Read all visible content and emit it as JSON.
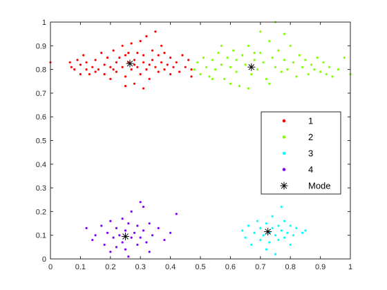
{
  "chart_data": {
    "type": "scatter",
    "title": "",
    "xlabel": "",
    "ylabel": "",
    "xlim": [
      0,
      1
    ],
    "ylim": [
      0,
      1
    ],
    "xticks": [
      "0",
      "0.1",
      "0.2",
      "0.3",
      "0.4",
      "0.5",
      "0.6",
      "0.7",
      "0.8",
      "0.9",
      "1"
    ],
    "yticks": [
      "0",
      "0.1",
      "0.2",
      "0.3",
      "0.4",
      "0.5",
      "0.6",
      "0.7",
      "0.8",
      "0.9",
      "1"
    ],
    "grid": false,
    "legend_position": "right",
    "series": [
      {
        "name": "1",
        "color": "#ff0000",
        "points": [
          [
            0.065,
            0.83
          ],
          [
            0.07,
            0.81
          ],
          [
            0.08,
            0.8
          ],
          [
            0.09,
            0.84
          ],
          [
            0.1,
            0.82
          ],
          [
            0.11,
            0.86
          ],
          [
            0.12,
            0.8
          ],
          [
            0.12,
            0.83
          ],
          [
            0.13,
            0.78
          ],
          [
            0.14,
            0.81
          ],
          [
            0.15,
            0.84
          ],
          [
            0.16,
            0.8
          ],
          [
            0.17,
            0.87
          ],
          [
            0.18,
            0.82
          ],
          [
            0.18,
            0.78
          ],
          [
            0.19,
            0.85
          ],
          [
            0.2,
            0.81
          ],
          [
            0.2,
            0.76
          ],
          [
            0.21,
            0.88
          ],
          [
            0.22,
            0.83
          ],
          [
            0.22,
            0.79
          ],
          [
            0.23,
            0.85
          ],
          [
            0.24,
            0.9
          ],
          [
            0.24,
            0.81
          ],
          [
            0.25,
            0.77
          ],
          [
            0.25,
            0.86
          ],
          [
            0.26,
            0.83
          ],
          [
            0.27,
            0.8
          ],
          [
            0.27,
            0.91
          ],
          [
            0.28,
            0.84
          ],
          [
            0.28,
            0.74
          ],
          [
            0.29,
            0.87
          ],
          [
            0.29,
            0.81
          ],
          [
            0.3,
            0.78
          ],
          [
            0.3,
            0.92
          ],
          [
            0.31,
            0.83
          ],
          [
            0.31,
            0.86
          ],
          [
            0.32,
            0.8
          ],
          [
            0.32,
            0.94
          ],
          [
            0.33,
            0.82
          ],
          [
            0.33,
            0.76
          ],
          [
            0.34,
            0.88
          ],
          [
            0.34,
            0.84
          ],
          [
            0.35,
            0.81
          ],
          [
            0.35,
            0.96
          ],
          [
            0.36,
            0.79
          ],
          [
            0.36,
            0.86
          ],
          [
            0.37,
            0.83
          ],
          [
            0.37,
            0.9
          ],
          [
            0.38,
            0.8
          ],
          [
            0.38,
            0.87
          ],
          [
            0.39,
            0.82
          ],
          [
            0.4,
            0.78
          ],
          [
            0.4,
            0.85
          ],
          [
            0.41,
            0.81
          ],
          [
            0.42,
            0.83
          ],
          [
            0.43,
            0.79
          ],
          [
            0.44,
            0.86
          ],
          [
            0.45,
            0.81
          ],
          [
            0.46,
            0.84
          ],
          [
            0.47,
            0.8
          ],
          [
            0.47,
            0.77
          ],
          [
            0.25,
            0.73
          ],
          [
            0.31,
            0.72
          ],
          [
            0.21,
            0.8
          ],
          [
            0.15,
            0.79
          ],
          [
            0.1,
            0.78
          ],
          [
            0.0,
            0.83
          ],
          [
            0.28,
            0.82
          ],
          [
            0.26,
            0.87
          ]
        ]
      },
      {
        "name": "2",
        "color": "#7fff00",
        "points": [
          [
            0.48,
            0.8
          ],
          [
            0.49,
            0.83
          ],
          [
            0.5,
            0.78
          ],
          [
            0.51,
            0.85
          ],
          [
            0.52,
            0.81
          ],
          [
            0.53,
            0.77
          ],
          [
            0.54,
            0.84
          ],
          [
            0.55,
            0.8
          ],
          [
            0.56,
            0.87
          ],
          [
            0.57,
            0.82
          ],
          [
            0.58,
            0.76
          ],
          [
            0.59,
            0.85
          ],
          [
            0.6,
            0.81
          ],
          [
            0.61,
            0.88
          ],
          [
            0.62,
            0.79
          ],
          [
            0.62,
            0.84
          ],
          [
            0.63,
            0.73
          ],
          [
            0.64,
            0.86
          ],
          [
            0.65,
            0.82
          ],
          [
            0.66,
            0.9
          ],
          [
            0.67,
            0.78
          ],
          [
            0.68,
            0.84
          ],
          [
            0.69,
            0.8
          ],
          [
            0.7,
            0.87
          ],
          [
            0.71,
            0.83
          ],
          [
            0.72,
            0.76
          ],
          [
            0.73,
            0.92
          ],
          [
            0.74,
            0.85
          ],
          [
            0.75,
            0.81
          ],
          [
            0.76,
            0.88
          ],
          [
            0.77,
            0.79
          ],
          [
            0.78,
            0.84
          ],
          [
            0.79,
            0.8
          ],
          [
            0.8,
            0.9
          ],
          [
            0.81,
            0.83
          ],
          [
            0.82,
            0.77
          ],
          [
            0.83,
            0.86
          ],
          [
            0.84,
            0.81
          ],
          [
            0.85,
            0.84
          ],
          [
            0.86,
            0.78
          ],
          [
            0.87,
            0.82
          ],
          [
            0.88,
            0.8
          ],
          [
            0.89,
            0.85
          ],
          [
            0.9,
            0.79
          ],
          [
            0.91,
            0.83
          ],
          [
            0.92,
            0.78
          ],
          [
            0.93,
            0.81
          ],
          [
            0.94,
            0.77
          ],
          [
            0.96,
            0.8
          ],
          [
            0.98,
            0.85
          ],
          [
            1.0,
            0.78
          ],
          [
            0.57,
            0.9
          ],
          [
            0.6,
            0.74
          ],
          [
            0.7,
            0.96
          ],
          [
            0.73,
            0.74
          ],
          [
            0.75,
            1.0
          ],
          [
            0.78,
            0.95
          ],
          [
            0.66,
            0.72
          ],
          [
            0.54,
            0.76
          ],
          [
            0.68,
            0.87
          ]
        ]
      },
      {
        "name": "3",
        "color": "#00ffff",
        "points": [
          [
            0.64,
            0.12
          ],
          [
            0.65,
            0.09
          ],
          [
            0.66,
            0.14
          ],
          [
            0.67,
            0.06
          ],
          [
            0.68,
            0.11
          ],
          [
            0.69,
            0.16
          ],
          [
            0.7,
            0.08
          ],
          [
            0.7,
            0.13
          ],
          [
            0.71,
            0.1
          ],
          [
            0.72,
            0.04
          ],
          [
            0.72,
            0.15
          ],
          [
            0.73,
            0.11
          ],
          [
            0.73,
            0.07
          ],
          [
            0.74,
            0.18
          ],
          [
            0.74,
            0.13
          ],
          [
            0.75,
            0.1
          ],
          [
            0.75,
            0.02
          ],
          [
            0.76,
            0.14
          ],
          [
            0.76,
            0.08
          ],
          [
            0.77,
            0.22
          ],
          [
            0.77,
            0.12
          ],
          [
            0.78,
            0.09
          ],
          [
            0.78,
            0.16
          ],
          [
            0.79,
            0.11
          ],
          [
            0.8,
            0.06
          ],
          [
            0.8,
            0.14
          ],
          [
            0.81,
            0.1
          ],
          [
            0.82,
            0.13
          ],
          [
            0.84,
            0.11
          ],
          [
            0.85,
            0.12
          ]
        ]
      },
      {
        "name": "4",
        "color": "#7f00ff",
        "points": [
          [
            0.12,
            0.13
          ],
          [
            0.14,
            0.08
          ],
          [
            0.15,
            0.1
          ],
          [
            0.17,
            0.14
          ],
          [
            0.18,
            0.06
          ],
          [
            0.19,
            0.11
          ],
          [
            0.2,
            0.16
          ],
          [
            0.2,
            0.03
          ],
          [
            0.21,
            0.09
          ],
          [
            0.22,
            0.13
          ],
          [
            0.22,
            0.05
          ],
          [
            0.23,
            0.1
          ],
          [
            0.24,
            0.17
          ],
          [
            0.24,
            0.07
          ],
          [
            0.25,
            0.12
          ],
          [
            0.26,
            0.01
          ],
          [
            0.26,
            0.15
          ],
          [
            0.27,
            0.09
          ],
          [
            0.27,
            0.2
          ],
          [
            0.28,
            0.11
          ],
          [
            0.29,
            0.06
          ],
          [
            0.29,
            0.14
          ],
          [
            0.3,
            0.24
          ],
          [
            0.3,
            0.09
          ],
          [
            0.31,
            0.12
          ],
          [
            0.32,
            0.07
          ],
          [
            0.33,
            0.15
          ],
          [
            0.34,
            0.1
          ],
          [
            0.36,
            0.13
          ],
          [
            0.38,
            0.08
          ],
          [
            0.4,
            0.11
          ],
          [
            0.42,
            0.19
          ],
          [
            0.31,
            0.22
          ],
          [
            0.25,
            0.04
          ],
          [
            0.33,
            0.03
          ]
        ]
      }
    ],
    "mode": {
      "name": "Mode",
      "color": "#000000",
      "points": [
        [
          0.265,
          0.825
        ],
        [
          0.67,
          0.81
        ],
        [
          0.725,
          0.115
        ],
        [
          0.25,
          0.095
        ]
      ]
    },
    "legend": [
      {
        "label": "1",
        "color": "#ff0000",
        "marker": "dot"
      },
      {
        "label": "2",
        "color": "#7fff00",
        "marker": "dot"
      },
      {
        "label": "3",
        "color": "#00ffff",
        "marker": "dot"
      },
      {
        "label": "4",
        "color": "#7f00ff",
        "marker": "dot"
      },
      {
        "label": "Mode",
        "color": "#000000",
        "marker": "asterisk"
      }
    ]
  }
}
